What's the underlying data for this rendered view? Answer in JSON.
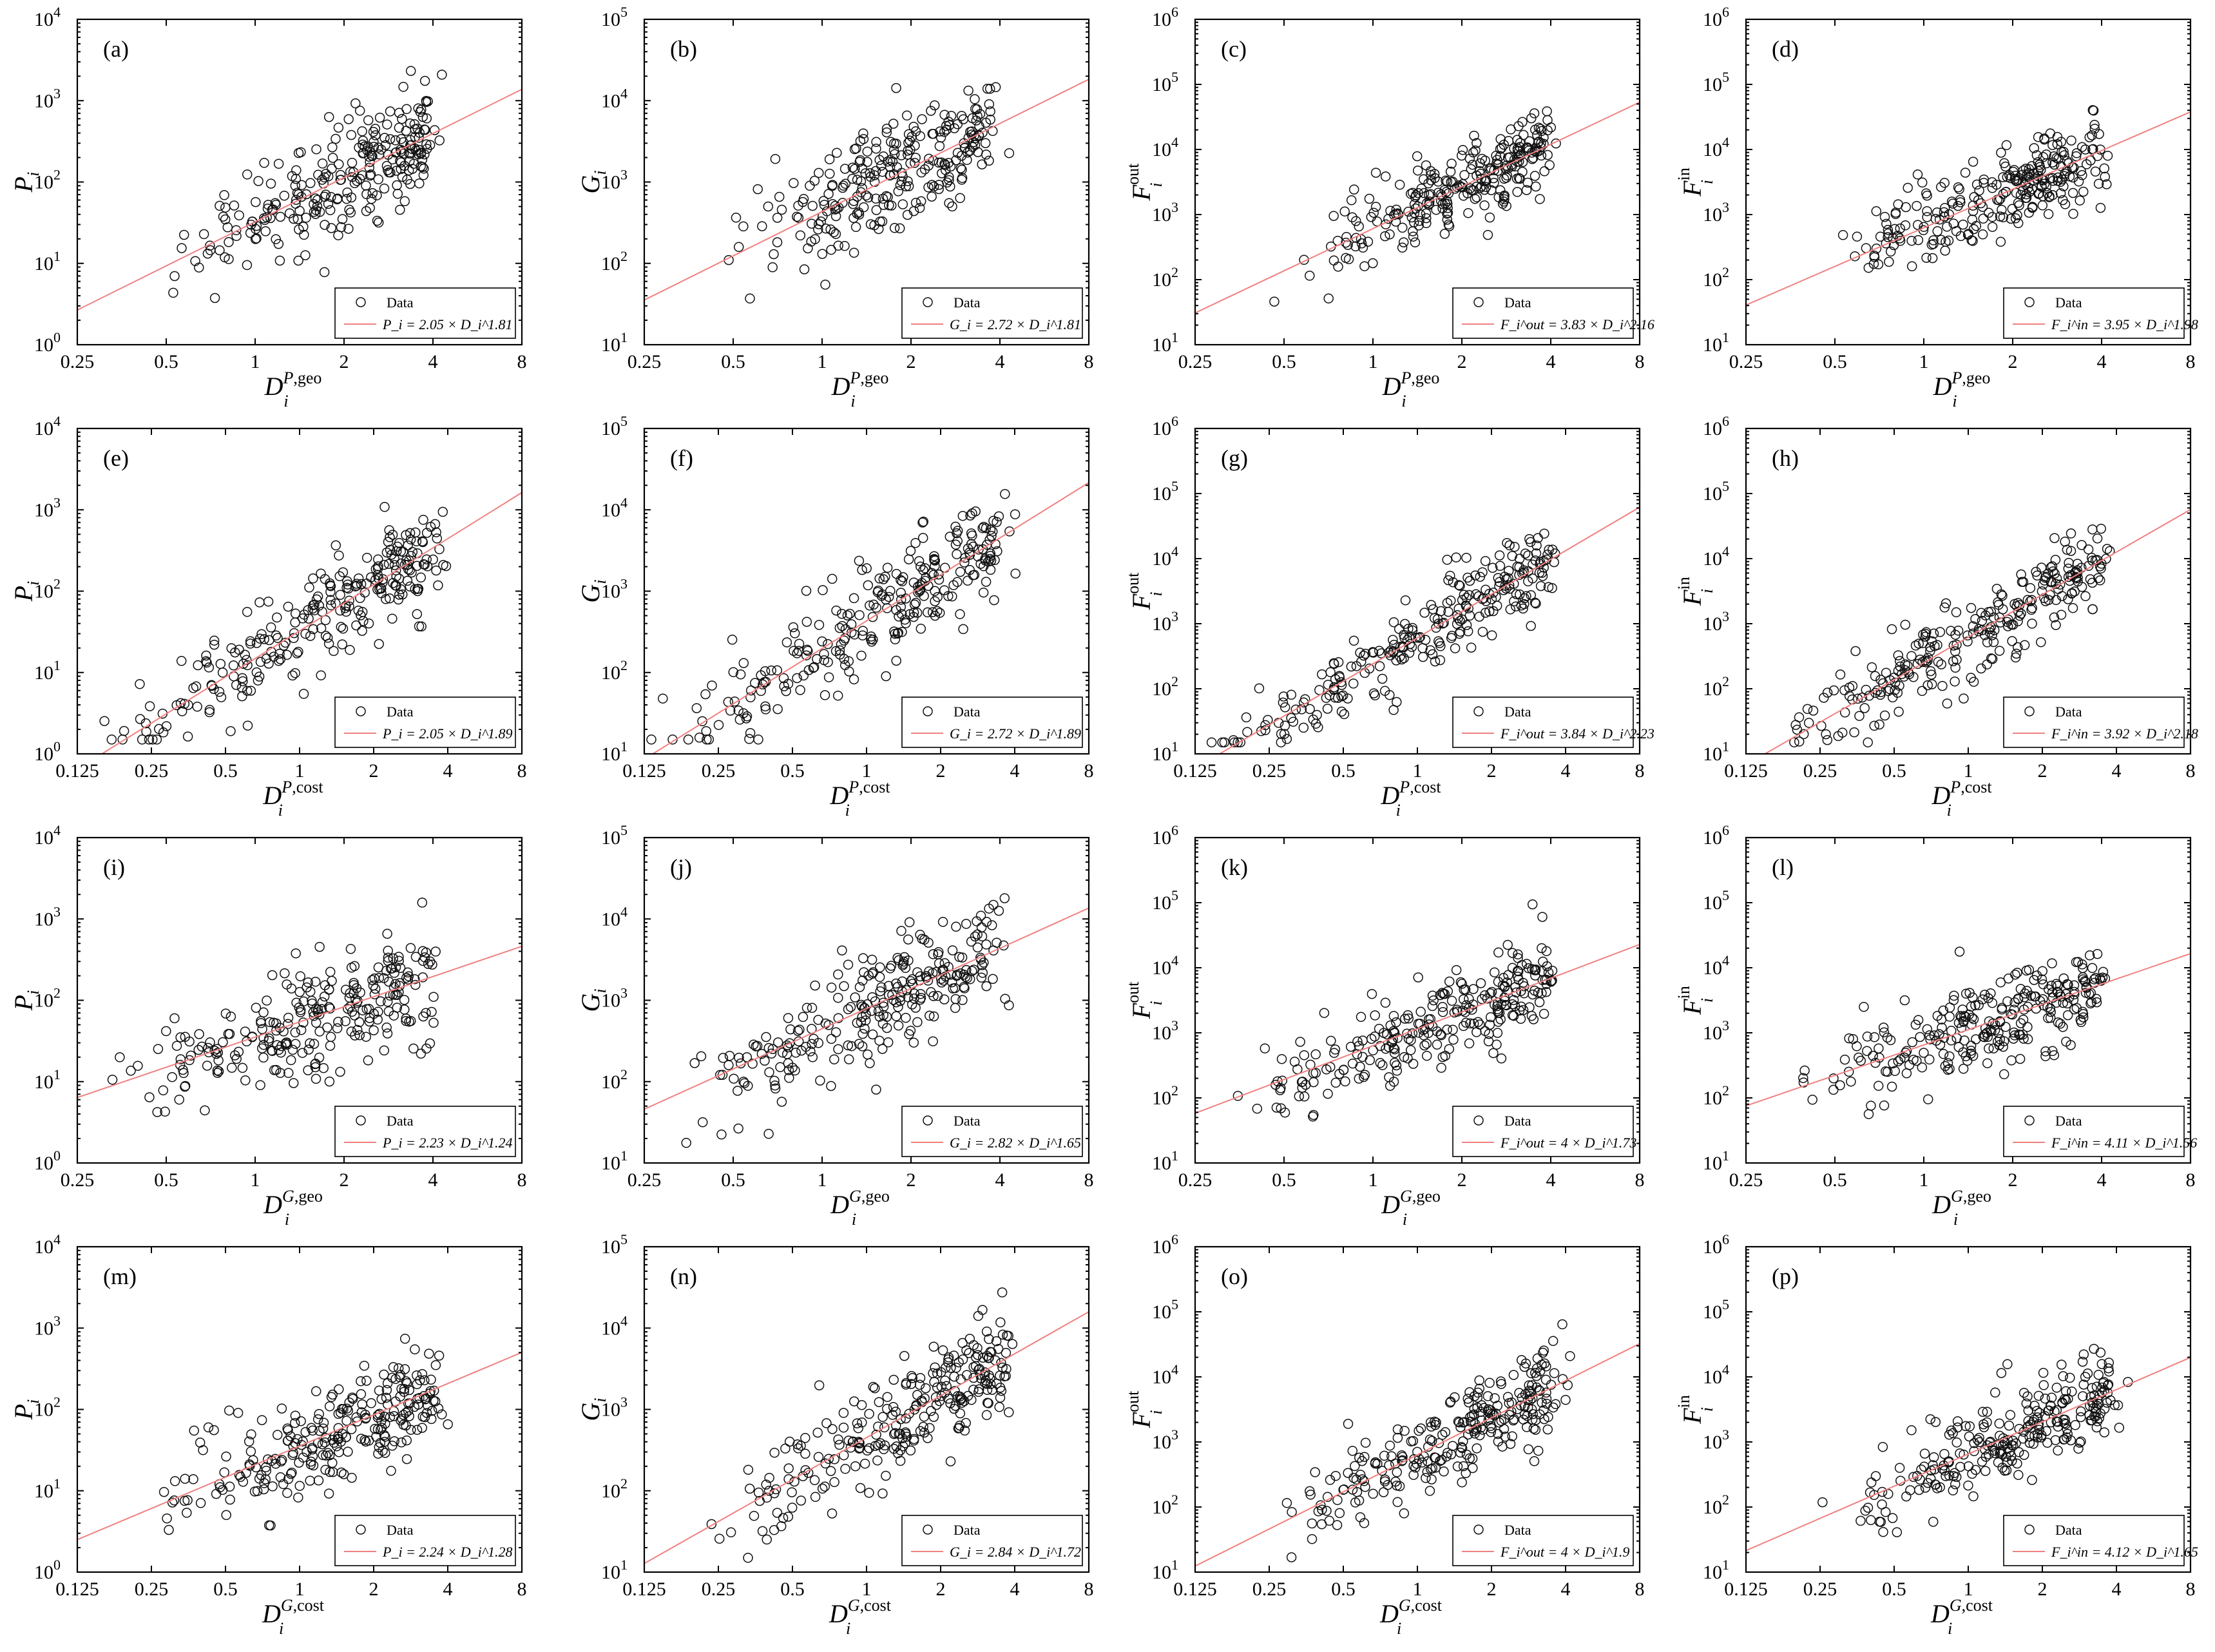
{
  "chart_data": [
    {
      "panel": "(a)",
      "type": "scatter",
      "xlabel": "D_i^{P,geo}",
      "ylabel": "P_i",
      "xlim": [
        0.25,
        8
      ],
      "ylim": [
        1,
        10000
      ],
      "xticks": [
        "0.25",
        "0.5",
        "1",
        "2",
        "4",
        "8"
      ],
      "yticks": [
        "10^0",
        "10^1",
        "10^2",
        "10^3",
        "10^4"
      ],
      "scale": "log-log",
      "fit": {
        "a": 2.05,
        "b": 1.81,
        "text": "P_i = 2.05 × D_i^1.81"
      },
      "legend": [
        "Data"
      ],
      "cloud": {
        "xmin": 0.5,
        "xmax": 3.8,
        "n": 260,
        "seed": 1
      }
    },
    {
      "panel": "(b)",
      "type": "scatter",
      "xlabel": "D_i^{P,geo}",
      "ylabel": "G_i",
      "xlim": [
        0.25,
        8
      ],
      "ylim": [
        10,
        100000
      ],
      "xticks": [
        "0.25",
        "0.5",
        "1",
        "2",
        "4",
        "8"
      ],
      "yticks": [
        "10^1",
        "10^2",
        "10^3",
        "10^4",
        "10^5"
      ],
      "scale": "log-log",
      "fit": {
        "a": 2.72,
        "b": 1.81,
        "text": "G_i = 2.72 × D_i^1.81"
      },
      "legend": [
        "Data"
      ],
      "cloud": {
        "xmin": 0.5,
        "xmax": 3.8,
        "n": 260,
        "seed": 2
      }
    },
    {
      "panel": "(c)",
      "type": "scatter",
      "xlabel": "D_i^{P,geo}",
      "ylabel": "F_i^out",
      "xlim": [
        0.25,
        8
      ],
      "ylim": [
        10,
        1000000
      ],
      "xticks": [
        "0.25",
        "0.5",
        "1",
        "2",
        "4",
        "8"
      ],
      "yticks": [
        "10^1",
        "10^2",
        "10^3",
        "10^4",
        "10^5",
        "10^6"
      ],
      "scale": "log-log",
      "fit": {
        "a": 3.83,
        "b": 2.16,
        "text": "F_i^out = 3.83 × D_i^2.16"
      },
      "legend": [
        "Data"
      ],
      "cloud": {
        "xmin": 0.5,
        "xmax": 3.8,
        "n": 260,
        "seed": 3
      }
    },
    {
      "panel": "(d)",
      "type": "scatter",
      "xlabel": "D_i^{P,geo}",
      "ylabel": "F_i^in",
      "xlim": [
        0.25,
        8
      ],
      "ylim": [
        10,
        1000000
      ],
      "xticks": [
        "0.25",
        "0.5",
        "1",
        "2",
        "4",
        "8"
      ],
      "yticks": [
        "10^1",
        "10^2",
        "10^3",
        "10^4",
        "10^5",
        "10^6"
      ],
      "scale": "log-log",
      "fit": {
        "a": 3.95,
        "b": 1.98,
        "text": "F_i^in = 3.95 × D_i^1.98"
      },
      "legend": [
        "Data"
      ],
      "cloud": {
        "xmin": 0.5,
        "xmax": 3.8,
        "n": 260,
        "seed": 4
      }
    },
    {
      "panel": "(e)",
      "type": "scatter",
      "xlabel": "D_i^{P,cost}",
      "ylabel": "P_i",
      "xlim": [
        0.125,
        8
      ],
      "ylim": [
        1,
        10000
      ],
      "xticks": [
        "0.125",
        "0.25",
        "0.5",
        "1",
        "2",
        "4",
        "8"
      ],
      "yticks": [
        "10^0",
        "10^1",
        "10^2",
        "10^3",
        "10^4"
      ],
      "scale": "log-log",
      "fit": {
        "a": 2.05,
        "b": 1.89,
        "text": "P_i = 2.05 × D_i^1.89"
      },
      "legend": [
        "Data"
      ],
      "cloud": {
        "xmin": 0.14,
        "xmax": 3.6,
        "n": 260,
        "seed": 5
      }
    },
    {
      "panel": "(f)",
      "type": "scatter",
      "xlabel": "D_i^{P,cost}",
      "ylabel": "G_i",
      "xlim": [
        0.125,
        8
      ],
      "ylim": [
        10,
        100000
      ],
      "xticks": [
        "0.125",
        "0.25",
        "0.5",
        "1",
        "2",
        "4",
        "8"
      ],
      "yticks": [
        "10^1",
        "10^2",
        "10^3",
        "10^4",
        "10^5"
      ],
      "scale": "log-log",
      "fit": {
        "a": 2.72,
        "b": 1.89,
        "text": "G_i = 2.72 × D_i^1.89"
      },
      "legend": [
        "Data"
      ],
      "cloud": {
        "xmin": 0.14,
        "xmax": 3.6,
        "n": 260,
        "seed": 6
      }
    },
    {
      "panel": "(g)",
      "type": "scatter",
      "xlabel": "D_i^{P,cost}",
      "ylabel": "F_i^out",
      "xlim": [
        0.125,
        8
      ],
      "ylim": [
        10,
        1000000
      ],
      "xticks": [
        "0.125",
        "0.25",
        "0.5",
        "1",
        "2",
        "4",
        "8"
      ],
      "yticks": [
        "10^1",
        "10^2",
        "10^3",
        "10^4",
        "10^5",
        "10^6"
      ],
      "scale": "log-log",
      "fit": {
        "a": 3.84,
        "b": 2.23,
        "text": "F_i^out = 3.84 × D_i^2.23"
      },
      "legend": [
        "Data"
      ],
      "cloud": {
        "xmin": 0.14,
        "xmax": 3.6,
        "n": 260,
        "seed": 7
      }
    },
    {
      "panel": "(h)",
      "type": "scatter",
      "xlabel": "D_i^{P,cost}",
      "ylabel": "F_i^in",
      "xlim": [
        0.125,
        8
      ],
      "ylim": [
        10,
        1000000
      ],
      "xticks": [
        "0.125",
        "0.25",
        "0.5",
        "1",
        "2",
        "4",
        "8"
      ],
      "yticks": [
        "10^1",
        "10^2",
        "10^3",
        "10^4",
        "10^5",
        "10^6"
      ],
      "scale": "log-log",
      "fit": {
        "a": 3.92,
        "b": 2.18,
        "text": "F_i^in = 3.92 × D_i^2.18"
      },
      "legend": [
        "Data"
      ],
      "cloud": {
        "xmin": 0.14,
        "xmax": 3.6,
        "n": 260,
        "seed": 8
      }
    },
    {
      "panel": "(i)",
      "type": "scatter",
      "xlabel": "D_i^{G,geo}",
      "ylabel": "P_i",
      "xlim": [
        0.25,
        8
      ],
      "ylim": [
        1,
        10000
      ],
      "xticks": [
        "0.25",
        "0.5",
        "1",
        "2",
        "4",
        "8"
      ],
      "yticks": [
        "10^0",
        "10^1",
        "10^2",
        "10^3",
        "10^4"
      ],
      "scale": "log-log",
      "fit": {
        "a": 2.23,
        "b": 1.24,
        "text": "P_i = 2.23 × D_i^1.24"
      },
      "legend": [
        "Data"
      ],
      "cloud": {
        "xmin": 0.33,
        "xmax": 3.9,
        "n": 260,
        "seed": 9
      }
    },
    {
      "panel": "(j)",
      "type": "scatter",
      "xlabel": "D_i^{G,geo}",
      "ylabel": "G_i",
      "xlim": [
        0.25,
        8
      ],
      "ylim": [
        10,
        100000
      ],
      "xticks": [
        "0.25",
        "0.5",
        "1",
        "2",
        "4",
        "8"
      ],
      "yticks": [
        "10^1",
        "10^2",
        "10^3",
        "10^4",
        "10^5"
      ],
      "scale": "log-log",
      "fit": {
        "a": 2.82,
        "b": 1.65,
        "text": "G_i = 2.82 × D_i^1.65"
      },
      "legend": [
        "Data"
      ],
      "cloud": {
        "xmin": 0.33,
        "xmax": 3.9,
        "n": 260,
        "seed": 10
      }
    },
    {
      "panel": "(k)",
      "type": "scatter",
      "xlabel": "D_i^{G,geo}",
      "ylabel": "F_i^out",
      "xlim": [
        0.25,
        8
      ],
      "ylim": [
        10,
        1000000
      ],
      "xticks": [
        "0.25",
        "0.5",
        "1",
        "2",
        "4",
        "8"
      ],
      "yticks": [
        "10^1",
        "10^2",
        "10^3",
        "10^4",
        "10^5",
        "10^6"
      ],
      "scale": "log-log",
      "fit": {
        "a": 4,
        "b": 1.73,
        "text": "F_i^out = 4 × D_i^1.73"
      },
      "legend": [
        "Data"
      ],
      "cloud": {
        "xmin": 0.33,
        "xmax": 3.9,
        "n": 260,
        "seed": 11
      }
    },
    {
      "panel": "(l)",
      "type": "scatter",
      "xlabel": "D_i^{G,geo}",
      "ylabel": "F_i^in",
      "xlim": [
        0.25,
        8
      ],
      "ylim": [
        10,
        1000000
      ],
      "xticks": [
        "0.25",
        "0.5",
        "1",
        "2",
        "4",
        "8"
      ],
      "yticks": [
        "10^1",
        "10^2",
        "10^3",
        "10^4",
        "10^5",
        "10^6"
      ],
      "scale": "log-log",
      "fit": {
        "a": 4.11,
        "b": 1.56,
        "text": "F_i^in = 4.11 × D_i^1.56"
      },
      "legend": [
        "Data"
      ],
      "cloud": {
        "xmin": 0.33,
        "xmax": 3.9,
        "n": 260,
        "seed": 12
      }
    },
    {
      "panel": "(m)",
      "type": "scatter",
      "xlabel": "D_i^{G,cost}",
      "ylabel": "P_i",
      "xlim": [
        0.125,
        8
      ],
      "ylim": [
        1,
        10000
      ],
      "xticks": [
        "0.125",
        "0.25",
        "0.5",
        "1",
        "2",
        "4",
        "8"
      ],
      "yticks": [
        "10^0",
        "10^1",
        "10^2",
        "10^3",
        "10^4"
      ],
      "scale": "log-log",
      "fit": {
        "a": 2.24,
        "b": 1.28,
        "text": "P_i = 2.24 × D_i^1.28"
      },
      "legend": [
        "Data"
      ],
      "cloud": {
        "xmin": 0.25,
        "xmax": 3.7,
        "n": 260,
        "seed": 13
      }
    },
    {
      "panel": "(n)",
      "type": "scatter",
      "xlabel": "D_i^{G,cost}",
      "ylabel": "G_i",
      "xlim": [
        0.125,
        8
      ],
      "ylim": [
        10,
        100000
      ],
      "xticks": [
        "0.125",
        "0.25",
        "0.5",
        "1",
        "2",
        "4",
        "8"
      ],
      "yticks": [
        "10^1",
        "10^2",
        "10^3",
        "10^4",
        "10^5"
      ],
      "scale": "log-log",
      "fit": {
        "a": 2.84,
        "b": 1.72,
        "text": "G_i = 2.84 × D_i^1.72"
      },
      "legend": [
        "Data"
      ],
      "cloud": {
        "xmin": 0.25,
        "xmax": 3.7,
        "n": 260,
        "seed": 14
      }
    },
    {
      "panel": "(o)",
      "type": "scatter",
      "xlabel": "D_i^{G,cost}",
      "ylabel": "F_i^out",
      "xlim": [
        0.125,
        8
      ],
      "ylim": [
        10,
        1000000
      ],
      "xticks": [
        "0.125",
        "0.25",
        "0.5",
        "1",
        "2",
        "4",
        "8"
      ],
      "yticks": [
        "10^1",
        "10^2",
        "10^3",
        "10^4",
        "10^5",
        "10^6"
      ],
      "scale": "log-log",
      "fit": {
        "a": 4,
        "b": 1.9,
        "text": "F_i^out = 4 × D_i^1.9"
      },
      "legend": [
        "Data"
      ],
      "cloud": {
        "xmin": 0.25,
        "xmax": 3.7,
        "n": 260,
        "seed": 15
      }
    },
    {
      "panel": "(p)",
      "type": "scatter",
      "xlabel": "D_i^{G,cost}",
      "ylabel": "F_i^in",
      "xlim": [
        0.125,
        8
      ],
      "ylim": [
        10,
        1000000
      ],
      "xticks": [
        "0.125",
        "0.25",
        "0.5",
        "1",
        "2",
        "4",
        "8"
      ],
      "yticks": [
        "10^1",
        "10^2",
        "10^3",
        "10^4",
        "10^5",
        "10^6"
      ],
      "scale": "log-log",
      "fit": {
        "a": 4.12,
        "b": 1.65,
        "text": "F_i^in = 4.12 × D_i^1.65"
      },
      "legend": [
        "Data"
      ],
      "cloud": {
        "xmin": 0.25,
        "xmax": 3.7,
        "n": 260,
        "seed": 16
      }
    }
  ],
  "colors": {
    "points": "#111111",
    "fit_line": "#f08080",
    "frame": "#000000"
  },
  "legend_data_label": "Data"
}
